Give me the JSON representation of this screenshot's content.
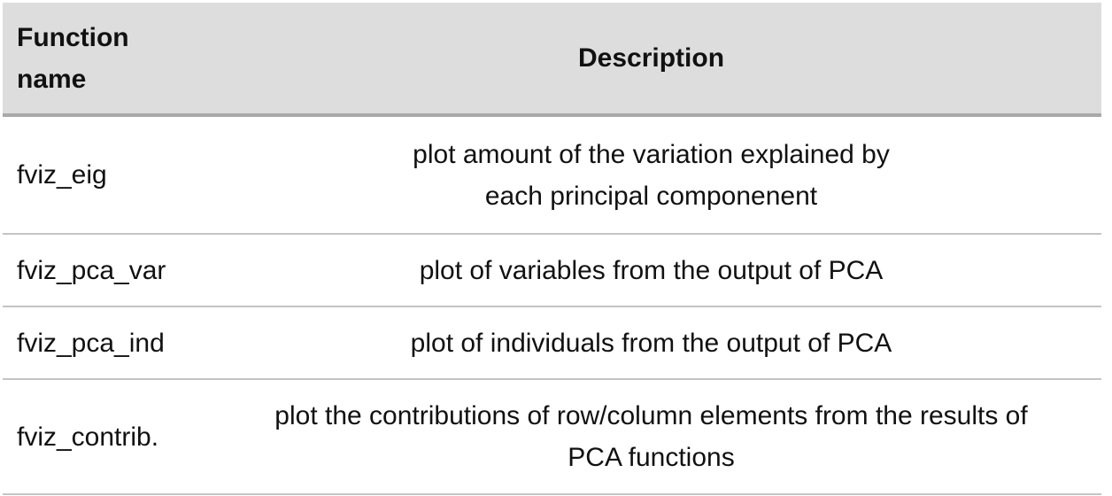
{
  "table": {
    "headers": {
      "name_line1": "Function",
      "name_line2": "name",
      "description": "Description"
    },
    "rows": [
      {
        "name": "fviz_eig",
        "desc_line1": "plot amount of the variation explained by",
        "desc_line2": "each principal componenent"
      },
      {
        "name": "fviz_pca_var",
        "desc_line1": "plot of variables from the output of PCA"
      },
      {
        "name": "fviz_pca_ind",
        "desc_line1": "plot of individuals from the output of PCA"
      },
      {
        "name": "fviz_contrib.",
        "desc_line1": "plot the contributions of row/column elements from the results of",
        "desc_line2": "PCA functions"
      }
    ]
  }
}
